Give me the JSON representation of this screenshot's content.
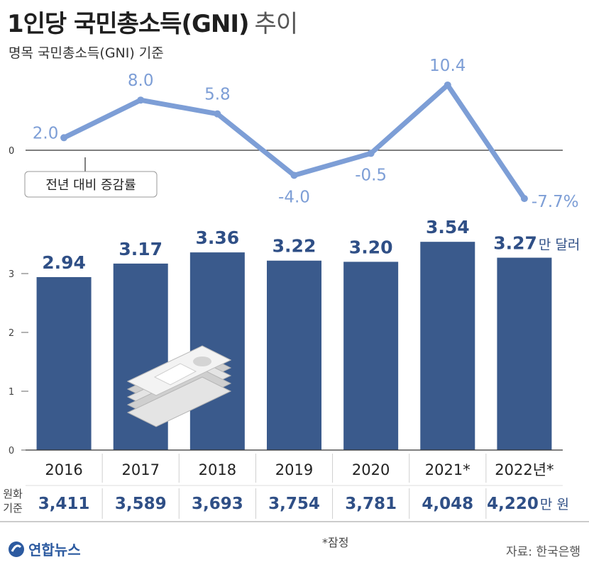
{
  "header": {
    "title": "1인당 국민총소득(GNI)",
    "title_suffix": "추이",
    "subtitle": "명목 국민총소득(GNI) 기준"
  },
  "chart_data": [
    {
      "type": "line",
      "x": [
        "2016",
        "2017",
        "2018",
        "2019",
        "2020",
        "2021*",
        "2022년*"
      ],
      "values": [
        2.0,
        8.0,
        5.8,
        -4.0,
        -0.5,
        10.4,
        -7.7
      ],
      "value_labels": [
        "2.0",
        "8.0",
        "5.8",
        "-4.0",
        "-0.5",
        "10.4",
        "-7.7%"
      ],
      "zero_label": "0",
      "legend_label": "전년 대비 증감률",
      "ylim": [
        -8,
        11
      ],
      "color": "#7d9ed6"
    },
    {
      "type": "bar",
      "categories": [
        "2016",
        "2017",
        "2018",
        "2019",
        "2020",
        "2021*",
        "2022년*"
      ],
      "values": [
        2.94,
        3.17,
        3.36,
        3.22,
        3.2,
        3.54,
        3.27
      ],
      "value_labels": [
        "2.94",
        "3.17",
        "3.36",
        "3.22",
        "3.20",
        "3.54",
        "3.27"
      ],
      "unit_label": "만 달러",
      "ytick_labels": [
        "0",
        "1",
        "2",
        "3"
      ],
      "ylim": [
        0,
        3.9
      ],
      "color": "#3a5a8c",
      "label_color": "#2f4f86",
      "krw_row_label": [
        "원화",
        "기준"
      ],
      "krw_values": [
        "3,411",
        "3,589",
        "3,693",
        "3,754",
        "3,781",
        "4,048",
        "4,220"
      ],
      "krw_unit": "만 원"
    }
  ],
  "footer": {
    "note": "*잠정",
    "source": "자료: 한국은행",
    "logo_text": "연합뉴스"
  },
  "colors": {
    "bar": "#3a5a8c",
    "line": "#7d9ed6",
    "axis": "#333333"
  }
}
